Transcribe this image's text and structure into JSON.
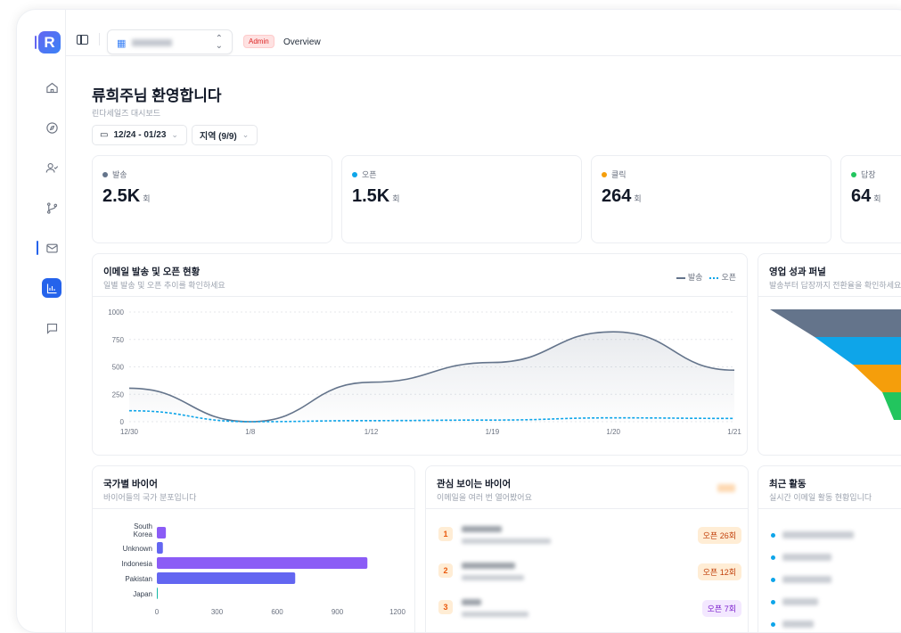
{
  "header": {
    "logo": "R",
    "admin_badge": "Admin",
    "page": "Overview"
  },
  "page": {
    "title": "류희주님 환영합니다",
    "subtitle": "린다세일즈 대시보드",
    "date_filter": "12/24 - 01/23",
    "region_filter": "지역 (9/9)"
  },
  "stats": [
    {
      "label": "발송",
      "value": "2.5K",
      "unit": "회",
      "color": "#64748b"
    },
    {
      "label": "오픈",
      "value": "1.5K",
      "unit": "회",
      "color": "#0ea5e9"
    },
    {
      "label": "클릭",
      "value": "264",
      "unit": "회",
      "color": "#f59e0b"
    },
    {
      "label": "답장",
      "value": "64",
      "unit": "회",
      "color": "#22c55e"
    }
  ],
  "email_chart": {
    "title": "이메일 발송 및 오픈 현황",
    "subtitle": "일별 발송 및 오픈 추이를 확인하세요",
    "legend": [
      "발송",
      "오픈"
    ]
  },
  "funnel": {
    "title": "영업 성과 퍼널",
    "subtitle": "발송부터 답장까지 전환율을 확인하세요",
    "colors": [
      "#64748b",
      "#0ea5e9",
      "#f59e0b",
      "#22c55e"
    ]
  },
  "country": {
    "title": "국가별 바이어",
    "subtitle": "바이어들의 국가 분포입니다"
  },
  "interested": {
    "title": "관심 보이는 바이어",
    "subtitle": "이메일을 여러 번 열어봤어요",
    "items": [
      {
        "rank": "1",
        "badge": "오픈 26회"
      },
      {
        "rank": "2",
        "badge": "오픈 12회"
      },
      {
        "rank": "3",
        "badge": "오픈 7회"
      }
    ]
  },
  "activity": {
    "title": "최근 활동",
    "subtitle": "실시간 이메일 활동 현황입니다"
  },
  "chart_data": [
    {
      "type": "line",
      "title": "이메일 발송 및 오픈 현황",
      "categories": [
        "12/30",
        "1/8",
        "1/12",
        "1/19",
        "1/20",
        "1/21"
      ],
      "series": [
        {
          "name": "발송",
          "values": [
            305,
            0,
            360,
            540,
            820,
            470
          ],
          "color": "#64748b"
        },
        {
          "name": "오픈",
          "values": [
            100,
            0,
            10,
            15,
            35,
            30
          ],
          "color": "#0ea5e9"
        }
      ],
      "ylim": [
        0,
        1000
      ],
      "yticks": [
        "0",
        "250",
        "500",
        "750",
        "1000"
      ]
    },
    {
      "type": "bar",
      "orientation": "horizontal",
      "title": "국가별 바이어",
      "categories": [
        "South Korea",
        "Unknown",
        "Indonesia",
        "Pakistan",
        "Japan"
      ],
      "values": [
        45,
        30,
        1050,
        690,
        3
      ],
      "colors": [
        "#8b5cf6",
        "#6366f1",
        "#8b5cf6",
        "#6366f1",
        "#14b8a6"
      ],
      "xlim": [
        0,
        1200
      ],
      "xticks": [
        "0",
        "300",
        "600",
        "900",
        "1200"
      ]
    }
  ]
}
